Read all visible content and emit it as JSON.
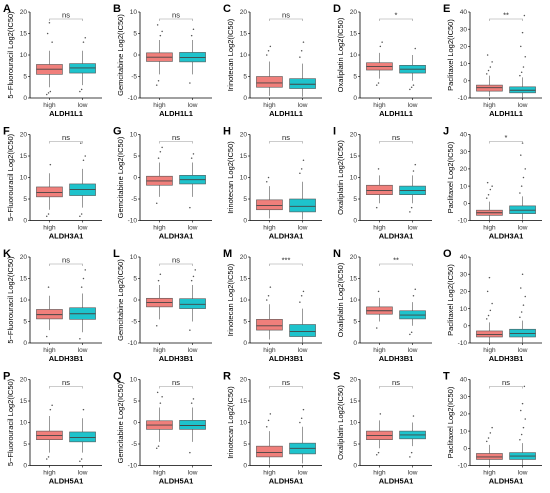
{
  "colors": {
    "high": "#f07f7b",
    "low": "#1ec3cc",
    "axis": "#000000",
    "bracket": "#9a9a9a"
  },
  "chart_data": [
    {
      "letter": "A",
      "type": "boxplot",
      "ylabel": "5−Fluorouracil Log2(IC50)",
      "xlabel": "ALDH1L1",
      "categories": [
        "high",
        "low"
      ],
      "ylim": [
        0,
        20
      ],
      "yticks": [
        0,
        5,
        10,
        15,
        20
      ],
      "sig": "ns",
      "boxes": [
        {
          "q1": 5.5,
          "median": 6.7,
          "q3": 7.8,
          "whislo": 2.5,
          "whishi": 11,
          "outliers": [
            0.8,
            1.2,
            1.5,
            13,
            15,
            17.5
          ]
        },
        {
          "q1": 5.8,
          "median": 7.0,
          "q3": 8.0,
          "whislo": 3,
          "whishi": 11,
          "outliers": [
            1.5,
            2,
            13,
            14
          ]
        }
      ]
    },
    {
      "letter": "B",
      "type": "boxplot",
      "ylabel": "Gemcitabine Log2(IC50)",
      "xlabel": "ALDH1L1",
      "categories": [
        "high",
        "low"
      ],
      "ylim": [
        -10,
        10
      ],
      "yticks": [
        -10,
        -5,
        0,
        5,
        10
      ],
      "sig": "ns",
      "boxes": [
        {
          "q1": -1.5,
          "median": -0.5,
          "q3": 0.5,
          "whislo": -4.5,
          "whishi": 3.5,
          "outliers": [
            -7,
            -6,
            4.5,
            5.5,
            7
          ]
        },
        {
          "q1": -1.6,
          "median": -0.6,
          "q3": 0.6,
          "whislo": -4.5,
          "whishi": 3.5,
          "outliers": [
            -6.5,
            4.5,
            6
          ]
        }
      ]
    },
    {
      "letter": "C",
      "type": "boxplot",
      "ylabel": "Irinotecan Log2(IC50)",
      "xlabel": "ALDH1L1",
      "categories": [
        "high",
        "low"
      ],
      "ylim": [
        0,
        20
      ],
      "yticks": [
        0,
        5,
        10,
        15,
        20
      ],
      "sig": "ns",
      "boxes": [
        {
          "q1": 2.5,
          "median": 3.5,
          "q3": 5,
          "whislo": 0.5,
          "whishi": 8.5,
          "outliers": [
            10,
            11,
            12
          ]
        },
        {
          "q1": 2.2,
          "median": 3.2,
          "q3": 4.5,
          "whislo": 0.3,
          "whishi": 8,
          "outliers": [
            9.5,
            11,
            13
          ]
        }
      ]
    },
    {
      "letter": "D",
      "type": "boxplot",
      "ylabel": "Oxaliplatin Log2(IC50)",
      "xlabel": "ALDH1L1",
      "categories": [
        "high",
        "low"
      ],
      "ylim": [
        0,
        20
      ],
      "yticks": [
        0,
        5,
        10,
        15,
        20
      ],
      "sig": "*",
      "boxes": [
        {
          "q1": 6.5,
          "median": 7.3,
          "q3": 8.2,
          "whislo": 4.5,
          "whishi": 10.5,
          "outliers": [
            3,
            3.5,
            12,
            13
          ]
        },
        {
          "q1": 5.8,
          "median": 6.7,
          "q3": 7.6,
          "whislo": 4,
          "whishi": 10,
          "outliers": [
            2,
            2.5,
            3,
            11.5
          ]
        }
      ]
    },
    {
      "letter": "E",
      "type": "boxplot",
      "ylabel": "Paclitaxel Log2(IC50)",
      "xlabel": "ALDH1L1",
      "categories": [
        "high",
        "low"
      ],
      "ylim": [
        -10,
        40
      ],
      "yticks": [
        -10,
        0,
        10,
        20,
        30,
        40
      ],
      "sig": "**",
      "boxes": [
        {
          "q1": -6,
          "median": -4,
          "q3": -2.5,
          "whislo": -9,
          "whishi": 3,
          "outliers": [
            4,
            6,
            8,
            11,
            15
          ]
        },
        {
          "q1": -7,
          "median": -5.5,
          "q3": -3.5,
          "whislo": -10,
          "whishi": 2,
          "outliers": [
            3,
            5,
            8,
            14,
            20,
            28,
            38
          ]
        }
      ]
    },
    {
      "letter": "F",
      "type": "boxplot",
      "ylabel": "5−Fluorouracil Log2(IC50)",
      "xlabel": "ALDH3A1",
      "categories": [
        "high",
        "low"
      ],
      "ylim": [
        0,
        20
      ],
      "yticks": [
        0,
        5,
        10,
        15,
        20
      ],
      "sig": "ns",
      "boxes": [
        {
          "q1": 5.5,
          "median": 6.5,
          "q3": 7.8,
          "whislo": 2.5,
          "whishi": 11,
          "outliers": [
            1,
            1.5,
            13
          ]
        },
        {
          "q1": 5.8,
          "median": 7.2,
          "q3": 8.5,
          "whislo": 3,
          "whishi": 12,
          "outliers": [
            1,
            1.5,
            14,
            15,
            18
          ]
        }
      ]
    },
    {
      "letter": "G",
      "type": "boxplot",
      "ylabel": "Gemcitabine Log2(IC50)",
      "xlabel": "ALDH3A1",
      "categories": [
        "high",
        "low"
      ],
      "ylim": [
        -10,
        10
      ],
      "yticks": [
        -10,
        -5,
        0,
        5,
        10
      ],
      "sig": "ns",
      "boxes": [
        {
          "q1": -1.8,
          "median": -0.8,
          "q3": 0.3,
          "whislo": -4.5,
          "whishi": 3.5,
          "outliers": [
            -6,
            4.5,
            6,
            7
          ]
        },
        {
          "q1": -1.5,
          "median": -0.5,
          "q3": 0.5,
          "whislo": -4.5,
          "whishi": 3.5,
          "outliers": [
            -7,
            4.5,
            5.5
          ]
        }
      ]
    },
    {
      "letter": "H",
      "type": "boxplot",
      "ylabel": "Irinotecan Log2(IC50)",
      "xlabel": "ALDH3A1",
      "categories": [
        "high",
        "low"
      ],
      "ylim": [
        0,
        20
      ],
      "yticks": [
        0,
        5,
        10,
        15,
        20
      ],
      "sig": "ns",
      "boxes": [
        {
          "q1": 2.5,
          "median": 3.5,
          "q3": 4.8,
          "whislo": 0.5,
          "whishi": 8,
          "outliers": [
            9,
            10
          ]
        },
        {
          "q1": 2,
          "median": 3.3,
          "q3": 5,
          "whislo": 0.2,
          "whishi": 9,
          "outliers": [
            11,
            12,
            14
          ]
        }
      ]
    },
    {
      "letter": "I",
      "type": "boxplot",
      "ylabel": "Oxaliplatin Log2(IC50)",
      "xlabel": "ALDH3A1",
      "categories": [
        "high",
        "low"
      ],
      "ylim": [
        0,
        20
      ],
      "yticks": [
        0,
        5,
        10,
        15,
        20
      ],
      "sig": "ns",
      "boxes": [
        {
          "q1": 6,
          "median": 7,
          "q3": 8.2,
          "whislo": 4,
          "whishi": 10.5,
          "outliers": [
            3,
            12
          ]
        },
        {
          "q1": 6,
          "median": 7,
          "q3": 8,
          "whislo": 4,
          "whishi": 10.5,
          "outliers": [
            2,
            3,
            11.5,
            13
          ]
        }
      ]
    },
    {
      "letter": "J",
      "type": "boxplot",
      "ylabel": "Paclitaxel Log2(IC50)",
      "xlabel": "ALDH3A1",
      "categories": [
        "high",
        "low"
      ],
      "ylim": [
        -10,
        40
      ],
      "yticks": [
        -10,
        0,
        10,
        20,
        30,
        40
      ],
      "sig": "*",
      "boxes": [
        {
          "q1": -7,
          "median": -5.5,
          "q3": -4,
          "whislo": -10,
          "whishi": 1,
          "outliers": [
            3,
            5,
            8,
            10,
            12
          ]
        },
        {
          "q1": -6,
          "median": -4,
          "q3": -1.5,
          "whislo": -9.5,
          "whishi": 4,
          "outliers": [
            6,
            10,
            15,
            20,
            28,
            35
          ]
        }
      ]
    },
    {
      "letter": "K",
      "type": "boxplot",
      "ylabel": "5−Fluorouracil Log2(IC50)",
      "xlabel": "ALDH3B1",
      "categories": [
        "high",
        "low"
      ],
      "ylim": [
        0,
        20
      ],
      "yticks": [
        0,
        5,
        10,
        15,
        20
      ],
      "sig": "ns",
      "boxes": [
        {
          "q1": 5.6,
          "median": 6.6,
          "q3": 7.8,
          "whislo": 3,
          "whishi": 11,
          "outliers": [
            1.5,
            13
          ]
        },
        {
          "q1": 5.5,
          "median": 6.8,
          "q3": 8.2,
          "whislo": 2.5,
          "whishi": 11.5,
          "outliers": [
            1,
            13,
            15,
            17
          ]
        }
      ]
    },
    {
      "letter": "L",
      "type": "boxplot",
      "ylabel": "Gemcitabine Log2(IC50)",
      "xlabel": "ALDH3B1",
      "categories": [
        "high",
        "low"
      ],
      "ylim": [
        -10,
        10
      ],
      "yticks": [
        -10,
        -5,
        0,
        5,
        10
      ],
      "sig": "ns",
      "boxes": [
        {
          "q1": -1.6,
          "median": -0.6,
          "q3": 0.4,
          "whislo": -4.5,
          "whishi": 3.5,
          "outliers": [
            -6,
            4.5,
            6
          ]
        },
        {
          "q1": -2,
          "median": -1,
          "q3": 0.3,
          "whislo": -5,
          "whishi": 3.5,
          "outliers": [
            -7,
            4.5,
            5.5,
            7
          ]
        }
      ]
    },
    {
      "letter": "M",
      "type": "boxplot",
      "ylabel": "Irinotecan Log2(IC50)",
      "xlabel": "ALDH3B1",
      "categories": [
        "high",
        "low"
      ],
      "ylim": [
        0,
        20
      ],
      "yticks": [
        0,
        5,
        10,
        15,
        20
      ],
      "sig": "***",
      "boxes": [
        {
          "q1": 3,
          "median": 4,
          "q3": 5.5,
          "whislo": 0.8,
          "whishi": 9,
          "outliers": [
            10,
            11,
            13
          ]
        },
        {
          "q1": 1.5,
          "median": 2.7,
          "q3": 4.3,
          "whislo": 0,
          "whishi": 8,
          "outliers": [
            9.5,
            11,
            12
          ]
        }
      ]
    },
    {
      "letter": "N",
      "type": "boxplot",
      "ylabel": "Oxaliplatin Log2(IC50)",
      "xlabel": "ALDH3B1",
      "categories": [
        "high",
        "low"
      ],
      "ylim": [
        0,
        20
      ],
      "yticks": [
        0,
        5,
        10,
        15,
        20
      ],
      "sig": "**",
      "boxes": [
        {
          "q1": 6.7,
          "median": 7.5,
          "q3": 8.4,
          "whislo": 5,
          "whishi": 10.5,
          "outliers": [
            3.5,
            12
          ]
        },
        {
          "q1": 5.6,
          "median": 6.5,
          "q3": 7.5,
          "whislo": 4,
          "whishi": 9.5,
          "outliers": [
            2,
            2.5,
            11,
            12.5
          ]
        }
      ]
    },
    {
      "letter": "O",
      "type": "boxplot",
      "ylabel": "Paclitaxel Log2(IC50)",
      "xlabel": "ALDH3B1",
      "categories": [
        "high",
        "low"
      ],
      "ylim": [
        -10,
        40
      ],
      "yticks": [
        -10,
        0,
        10,
        20,
        30,
        40
      ],
      "sig": "",
      "boxes": [
        {
          "q1": -6.5,
          "median": -5,
          "q3": -3,
          "whislo": -10,
          "whishi": 2,
          "outliers": [
            4,
            6,
            9,
            13,
            20,
            28
          ]
        },
        {
          "q1": -6.5,
          "median": -4.5,
          "q3": -2,
          "whislo": -10,
          "whishi": 3,
          "outliers": [
            5,
            8,
            12,
            17,
            22,
            30
          ]
        }
      ]
    },
    {
      "letter": "P",
      "type": "boxplot",
      "ylabel": "5−Fluorouracil Log2(IC50)",
      "xlabel": "ALDH5A1",
      "categories": [
        "high",
        "low"
      ],
      "ylim": [
        0,
        20
      ],
      "yticks": [
        0,
        5,
        10,
        15,
        20
      ],
      "sig": "ns",
      "boxes": [
        {
          "q1": 6,
          "median": 7,
          "q3": 8,
          "whislo": 3,
          "whishi": 11.5,
          "outliers": [
            1.5,
            2,
            13,
            14
          ]
        },
        {
          "q1": 5.5,
          "median": 6.5,
          "q3": 7.8,
          "whislo": 3,
          "whishi": 11,
          "outliers": [
            1,
            1.5,
            13
          ]
        }
      ]
    },
    {
      "letter": "Q",
      "type": "boxplot",
      "ylabel": "Gemcitabine Log2(IC50)",
      "xlabel": "ALDH5A1",
      "categories": [
        "high",
        "low"
      ],
      "ylim": [
        -10,
        10
      ],
      "yticks": [
        -10,
        -5,
        0,
        5,
        10
      ],
      "sig": "ns",
      "boxes": [
        {
          "q1": -1.6,
          "median": -0.6,
          "q3": 0.4,
          "whislo": -4.5,
          "whishi": 3.5,
          "outliers": [
            -6,
            -5.5,
            4.5,
            6,
            7
          ]
        },
        {
          "q1": -1.6,
          "median": -0.7,
          "q3": 0.5,
          "whislo": -4.5,
          "whishi": 3.5,
          "outliers": [
            -7,
            4.5,
            5.5
          ]
        }
      ]
    },
    {
      "letter": "R",
      "type": "boxplot",
      "ylabel": "Irinotecan Log2(IC50)",
      "xlabel": "ALDH5A1",
      "categories": [
        "high",
        "low"
      ],
      "ylim": [
        0,
        20
      ],
      "yticks": [
        0,
        5,
        10,
        15,
        20
      ],
      "sig": "ns",
      "boxes": [
        {
          "q1": 2,
          "median": 3,
          "q3": 4.5,
          "whislo": 0.2,
          "whishi": 8,
          "outliers": [
            9,
            10.5,
            12
          ]
        },
        {
          "q1": 2.7,
          "median": 4,
          "q3": 5.2,
          "whislo": 0.5,
          "whishi": 9,
          "outliers": [
            10,
            11,
            13
          ]
        }
      ]
    },
    {
      "letter": "S",
      "type": "boxplot",
      "ylabel": "Oxaliplatin Log2(IC50)",
      "xlabel": "ALDH5A1",
      "categories": [
        "high",
        "low"
      ],
      "ylim": [
        0,
        20
      ],
      "yticks": [
        0,
        5,
        10,
        15,
        20
      ],
      "sig": "ns",
      "boxes": [
        {
          "q1": 6,
          "median": 7,
          "q3": 8,
          "whislo": 4,
          "whishi": 10.5,
          "outliers": [
            2.5,
            3,
            12
          ]
        },
        {
          "q1": 6.2,
          "median": 7.1,
          "q3": 8,
          "whislo": 4.5,
          "whishi": 10,
          "outliers": [
            2,
            3,
            11.5
          ]
        }
      ]
    },
    {
      "letter": "T",
      "type": "boxplot",
      "ylabel": "Paclitaxel Log2(IC50)",
      "xlabel": "ALDH5A1",
      "categories": [
        "high",
        "low"
      ],
      "ylim": [
        -10,
        40
      ],
      "yticks": [
        -10,
        0,
        10,
        20,
        30,
        40
      ],
      "sig": "ns",
      "boxes": [
        {
          "q1": -6.5,
          "median": -5,
          "q3": -3,
          "whislo": -10,
          "whishi": 2,
          "outliers": [
            4,
            6,
            9,
            12
          ]
        },
        {
          "q1": -6.5,
          "median": -4.5,
          "q3": -2.5,
          "whislo": -10,
          "whishi": 3,
          "outliers": [
            5,
            8,
            12,
            17,
            22,
            26,
            36
          ]
        }
      ]
    }
  ]
}
